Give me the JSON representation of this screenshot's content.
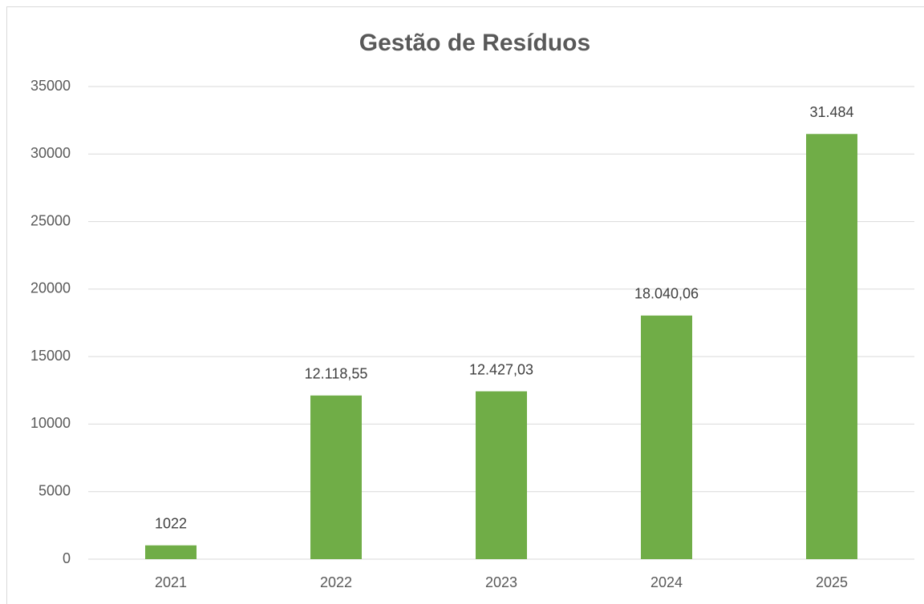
{
  "chart_data": {
    "type": "bar",
    "title": "Gestão de Resíduos",
    "categories": [
      "2021",
      "2022",
      "2023",
      "2024",
      "2025"
    ],
    "values": [
      1022,
      12118.55,
      12427.03,
      18040.06,
      31484
    ],
    "value_labels": [
      "1022",
      "12.118,55",
      "12.427,03",
      "18.040,06",
      "31.484"
    ],
    "color": "#70ad47",
    "ylim": [
      0,
      35000
    ],
    "yticks": [
      0,
      5000,
      10000,
      15000,
      20000,
      25000,
      30000,
      35000
    ],
    "grid": true
  }
}
